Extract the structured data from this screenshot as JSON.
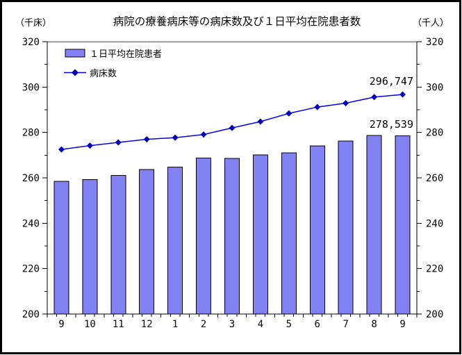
{
  "chart_data": {
    "type": "bar",
    "title": "病院の療養病床等の病床数及び１日平均在院患者数",
    "left_axis_unit": "（千床）",
    "right_axis_unit": "（千人）",
    "categories": [
      "9",
      "10",
      "11",
      "12",
      "1",
      "2",
      "3",
      "4",
      "5",
      "6",
      "7",
      "8",
      "9"
    ],
    "series": [
      {
        "name": "１日平均在院患者",
        "kind": "bar",
        "color": "#8282f2",
        "border_color": "#000000",
        "values": [
          258.5,
          259.3,
          261.0,
          263.7,
          264.8,
          268.7,
          268.5,
          270.1,
          271.0,
          274.1,
          276.2,
          278.7,
          278.539
        ]
      },
      {
        "name": "病床数",
        "kind": "line",
        "color": "#0000ee",
        "marker": "diamond",
        "marker_color": "#0000bb",
        "values": [
          272.5,
          274.2,
          275.6,
          277.0,
          277.7,
          279.1,
          282.0,
          284.8,
          288.4,
          291.2,
          292.9,
          295.6,
          296.747
        ]
      }
    ],
    "ylim": [
      200,
      320
    ],
    "yticks": [
      200,
      220,
      240,
      260,
      280,
      300,
      320
    ],
    "minor_tick_step": 10,
    "grid": false,
    "legend_position": "top-left",
    "annotations": [
      {
        "text": "296,747",
        "series": "病床数",
        "category_index": 12
      },
      {
        "text": "278,539",
        "series": "１日平均在院患者",
        "category_index": 12
      }
    ],
    "colors": {
      "plot_top_border": "#808080",
      "axis": "#000000",
      "background": "#ffffff",
      "outer_border": "#000000"
    }
  }
}
